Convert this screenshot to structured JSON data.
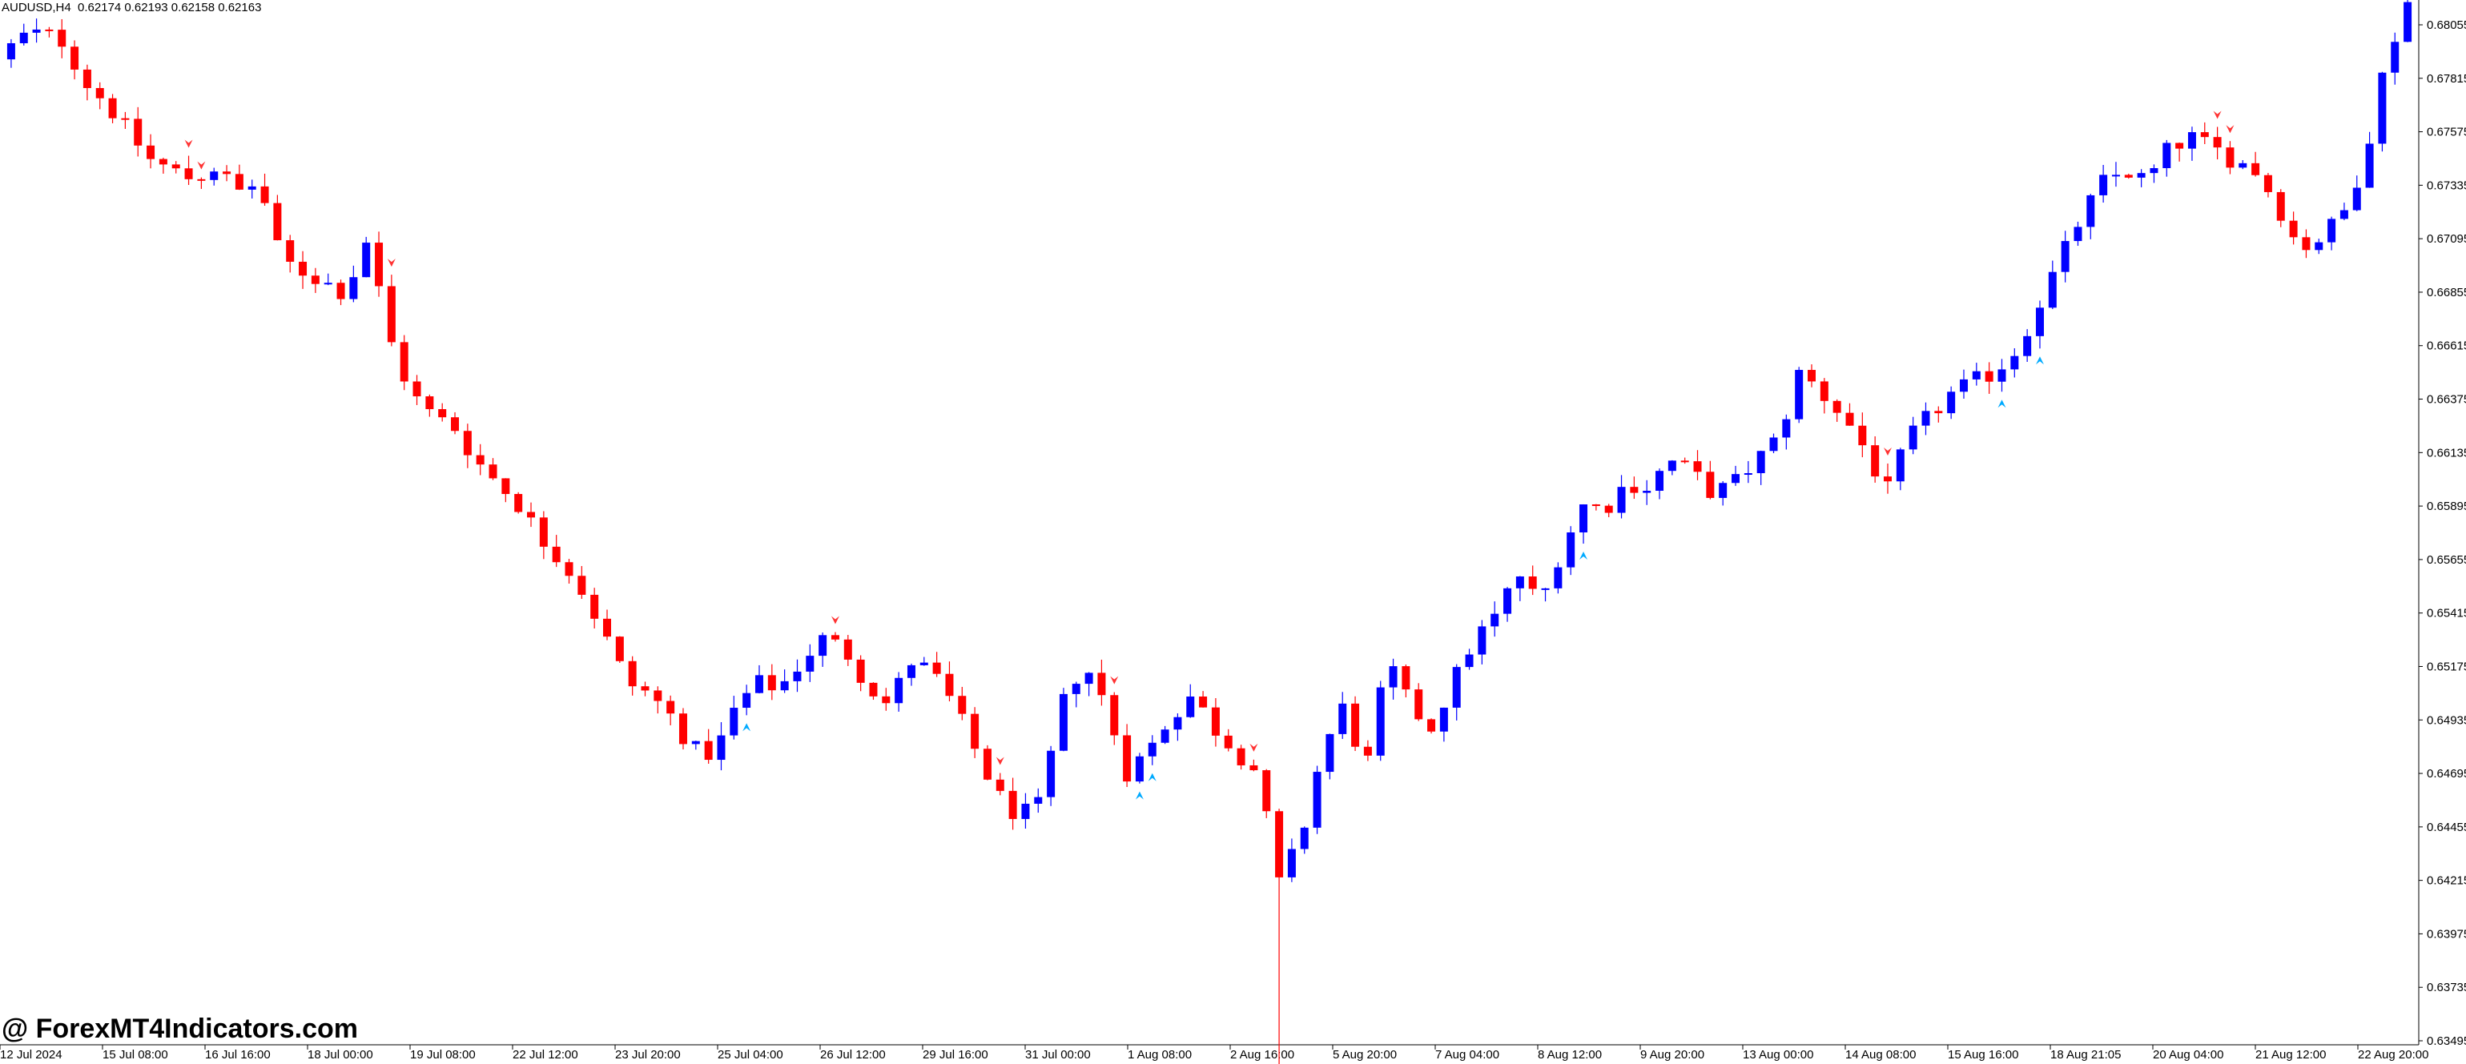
{
  "header": {
    "symbol_timeframe": "AUDUSD,H4",
    "ohlc": "0.62174 0.62193 0.62158 0.62163"
  },
  "watermark": "@ ForexMT4Indicators.com",
  "colors": {
    "bull": "#0000ff",
    "bear": "#ff0000",
    "arrow_up": "#00aaff",
    "arrow_down": "#ff3333",
    "axis": "#000000",
    "background": "#ffffff"
  },
  "chart_data": {
    "type": "candlestick",
    "symbol": "AUDUSD",
    "timeframe": "H4",
    "ylim": [
      0.6335,
      0.6818
    ],
    "y_ticks": [
      "0.68055",
      "0.67815",
      "0.67575",
      "0.67335",
      "0.67095",
      "0.66855",
      "0.66615",
      "0.66375",
      "0.66135",
      "0.65895",
      "0.65655",
      "0.65415",
      "0.65175",
      "0.64935",
      "0.64695",
      "0.64455",
      "0.64215",
      "0.63975",
      "0.63735",
      "0.63495"
    ],
    "x_ticks": [
      "12 Jul 2024",
      "15 Jul 08:00",
      "16 Jul 16:00",
      "18 Jul 00:00",
      "19 Jul 08:00",
      "22 Jul 12:00",
      "23 Jul 20:00",
      "25 Jul 04:00",
      "26 Jul 12:00",
      "29 Jul 16:00",
      "31 Jul 00:00",
      "1 Aug 08:00",
      "2 Aug 16:00",
      "5 Aug 20:00",
      "7 Aug 04:00",
      "8 Aug 12:00",
      "9 Aug 20:00",
      "13 Aug 00:00",
      "14 Aug 08:00",
      "15 Aug 16:00",
      "18 Aug 21:05",
      "20 Aug 04:00",
      "21 Aug 12:00",
      "22 Aug 20:00"
    ],
    "close_path": [
      0.679,
      0.68,
      0.6802,
      0.6798,
      0.678,
      0.677,
      0.6757,
      0.6745,
      0.674,
      0.6736,
      0.6742,
      0.673,
      0.6735,
      0.67,
      0.6695,
      0.669,
      0.6685,
      0.671,
      0.6665,
      0.664,
      0.663,
      0.6625,
      0.661,
      0.66,
      0.659,
      0.6575,
      0.6565,
      0.655,
      0.653,
      0.651,
      0.6505,
      0.6495,
      0.648,
      0.6478,
      0.65,
      0.651,
      0.6508,
      0.652,
      0.653,
      0.6525,
      0.651,
      0.65,
      0.652,
      0.6515,
      0.65,
      0.648,
      0.646,
      0.645,
      0.6455,
      0.65,
      0.652,
      0.65,
      0.647,
      0.648,
      0.6495,
      0.6505,
      0.649,
      0.648,
      0.647,
      0.642,
      0.644,
      0.648,
      0.65,
      0.647,
      0.652,
      0.65,
      0.649,
      0.651,
      0.653,
      0.654,
      0.656,
      0.6545,
      0.657,
      0.659,
      0.6588,
      0.66,
      0.6598,
      0.661,
      0.6605,
      0.6595,
      0.66,
      0.661,
      0.662,
      0.665,
      0.664,
      0.663,
      0.6615,
      0.6595,
      0.662,
      0.663,
      0.664,
      0.6645,
      0.665,
      0.666,
      0.668,
      0.67,
      0.672,
      0.6735,
      0.674,
      0.6735,
      0.675,
      0.6755,
      0.675,
      0.6745,
      0.674,
      0.6725,
      0.6705,
      0.671,
      0.672,
      0.6745,
      0.679,
      0.6816
    ]
  }
}
